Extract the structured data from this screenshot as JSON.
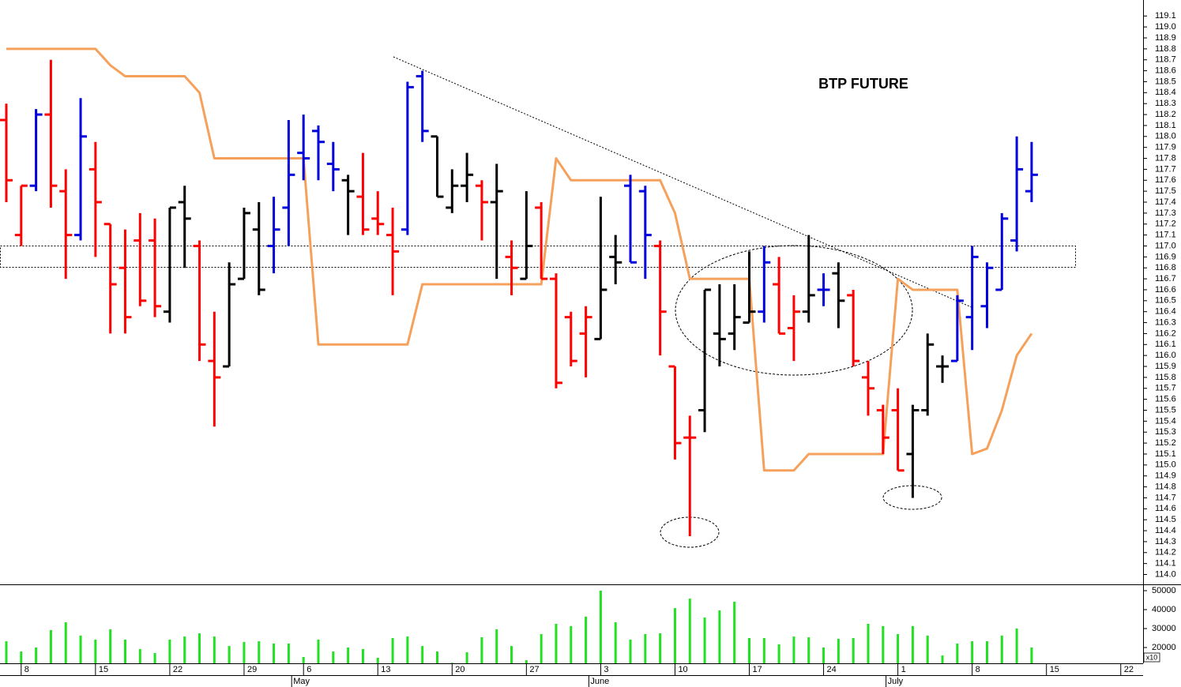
{
  "chart_data": {
    "type": "ohlc",
    "title": "BTP FUTURE",
    "categories": [
      null,
      "8",
      null,
      null,
      null,
      null,
      "15",
      null,
      null,
      null,
      null,
      "22",
      null,
      null,
      null,
      null,
      "29",
      null,
      null,
      null,
      "6",
      null,
      null,
      null,
      null,
      "13",
      null,
      null,
      null,
      null,
      "20",
      null,
      null,
      null,
      null,
      "27",
      null,
      null,
      null,
      null,
      "3",
      null,
      null,
      null,
      null,
      "10",
      null,
      null,
      null,
      null,
      "17",
      null,
      null,
      null,
      null,
      "24",
      null,
      null,
      null,
      null,
      "1",
      null,
      null,
      null,
      null,
      "8",
      null,
      null,
      null,
      null,
      "15",
      null,
      null,
      null,
      null,
      "22",
      null
    ],
    "months": [
      null,
      null,
      null,
      null,
      null,
      null,
      null,
      null,
      null,
      null,
      null,
      null,
      null,
      null,
      null,
      null,
      null,
      null,
      null,
      null,
      "May",
      null,
      null,
      null,
      null,
      null,
      null,
      null,
      null,
      null,
      null,
      null,
      null,
      null,
      null,
      null,
      null,
      null,
      null,
      null,
      "June",
      null,
      null,
      null,
      null,
      null,
      null,
      null,
      null,
      null,
      null,
      null,
      null,
      null,
      null,
      null,
      null,
      null,
      null,
      null,
      "July",
      null,
      null,
      null,
      null,
      null,
      null,
      null,
      null,
      null,
      null,
      null,
      null,
      null,
      null,
      null,
      null
    ],
    "open": [
      118.15,
      117.1,
      117.55,
      118.2,
      117.5,
      117.1,
      117.7,
      117.2,
      116.8,
      117.05,
      117.05,
      116.4,
      117.4,
      117.0,
      115.95,
      115.9,
      116.7,
      117.15,
      117.0,
      117.35,
      117.85,
      118.05,
      117.75,
      117.6,
      117.45,
      117.25,
      117.1,
      117.15,
      118.55,
      118.0,
      117.35,
      117.55,
      117.55,
      117.4,
      116.9,
      116.7,
      117.35,
      116.7,
      116.35,
      116.2,
      116.15,
      116.9,
      117.55,
      117.5,
      117.0,
      115.9,
      115.25,
      115.5,
      116.2,
      116.2,
      116.3,
      116.4,
      116.65,
      116.25,
      116.4,
      116.6,
      116.75,
      116.55,
      115.8,
      115.5,
      115.5,
      115.1,
      115.5,
      115.9,
      115.95,
      116.35,
      116.45,
      116.6,
      117.05,
      117.5,
      null,
      null,
      null,
      null,
      null,
      null,
      null
    ],
    "high": [
      118.3,
      117.55,
      118.25,
      118.7,
      117.7,
      118.35,
      117.95,
      117.2,
      117.15,
      117.3,
      117.25,
      117.35,
      117.55,
      117.05,
      116.4,
      116.85,
      117.35,
      117.4,
      117.45,
      118.15,
      118.2,
      118.1,
      117.95,
      117.65,
      117.85,
      117.5,
      117.35,
      118.5,
      118.6,
      118.0,
      117.7,
      117.85,
      117.6,
      117.75,
      117.05,
      117.5,
      117.4,
      116.75,
      116.4,
      116.45,
      117.45,
      117.1,
      117.65,
      117.55,
      117.05,
      115.9,
      115.45,
      116.6,
      116.65,
      116.65,
      116.95,
      117.0,
      116.9,
      116.55,
      117.1,
      116.75,
      116.85,
      116.6,
      115.95,
      115.55,
      115.7,
      115.55,
      116.2,
      116.0,
      116.55,
      117.0,
      116.85,
      117.3,
      118.0,
      117.95,
      null,
      null,
      null,
      null,
      null,
      null,
      null
    ],
    "low": [
      117.4,
      117.0,
      117.5,
      117.35,
      116.7,
      117.05,
      116.9,
      116.2,
      116.2,
      116.45,
      116.35,
      116.3,
      116.8,
      115.95,
      115.35,
      115.9,
      116.7,
      116.55,
      116.75,
      117.0,
      117.6,
      117.6,
      117.5,
      117.1,
      117.1,
      117.1,
      116.55,
      117.1,
      117.95,
      117.45,
      117.3,
      117.4,
      117.05,
      116.7,
      116.55,
      116.7,
      116.7,
      115.7,
      115.9,
      115.8,
      116.15,
      116.65,
      116.85,
      116.7,
      116.0,
      115.05,
      114.35,
      115.3,
      115.9,
      116.05,
      116.3,
      116.3,
      116.2,
      115.95,
      116.3,
      116.45,
      116.25,
      115.9,
      115.45,
      115.1,
      114.95,
      114.7,
      115.45,
      115.75,
      115.95,
      116.05,
      116.25,
      116.6,
      116.95,
      117.4,
      null,
      null,
      null,
      null,
      null,
      null,
      null
    ],
    "close": [
      117.6,
      117.55,
      118.2,
      117.55,
      117.1,
      118.0,
      117.4,
      116.65,
      116.35,
      116.5,
      116.45,
      117.35,
      117.25,
      116.1,
      115.8,
      116.65,
      117.3,
      116.6,
      117.15,
      117.65,
      117.8,
      117.95,
      117.7,
      117.5,
      117.15,
      117.2,
      116.95,
      118.45,
      118.05,
      117.45,
      117.55,
      117.65,
      117.4,
      117.5,
      116.8,
      117.0,
      116.7,
      115.75,
      115.95,
      116.35,
      116.6,
      116.85,
      116.85,
      117.1,
      116.4,
      115.2,
      115.25,
      116.6,
      116.15,
      116.35,
      116.4,
      116.85,
      116.2,
      116.4,
      116.55,
      116.6,
      116.5,
      115.95,
      115.7,
      115.25,
      114.95,
      115.5,
      116.1,
      115.9,
      116.5,
      116.9,
      116.8,
      117.25,
      117.7,
      117.65,
      null,
      null,
      null,
      null,
      null,
      null,
      null
    ],
    "bar_colors": [
      "#ff0000",
      "#ff0000",
      "#0000dd",
      "#ff0000",
      "#ff0000",
      "#0000dd",
      "#ff0000",
      "#ff0000",
      "#ff0000",
      "#ff0000",
      "#ff0000",
      "#000000",
      "#000000",
      "#ff0000",
      "#ff0000",
      "#000000",
      "#000000",
      "#000000",
      "#0000dd",
      "#0000dd",
      "#0000dd",
      "#0000dd",
      "#0000dd",
      "#000000",
      "#ff0000",
      "#ff0000",
      "#ff0000",
      "#0000dd",
      "#0000dd",
      "#000000",
      "#000000",
      "#000000",
      "#ff0000",
      "#000000",
      "#ff0000",
      "#000000",
      "#ff0000",
      "#ff0000",
      "#ff0000",
      "#ff0000",
      "#000000",
      "#000000",
      "#0000dd",
      "#0000dd",
      "#ff0000",
      "#ff0000",
      "#ff0000",
      "#000000",
      "#000000",
      "#000000",
      "#000000",
      "#0000dd",
      "#ff0000",
      "#ff0000",
      "#000000",
      "#0000dd",
      "#000000",
      "#ff0000",
      "#ff0000",
      "#ff0000",
      "#ff0000",
      "#000000",
      "#000000",
      "#000000",
      "#0000dd",
      "#0000dd",
      "#0000dd",
      "#0000dd",
      "#0000dd",
      "#0000dd",
      null,
      null,
      null,
      null,
      null,
      null,
      null
    ],
    "line": {
      "color": "#f5a15b",
      "values": [
        118.8,
        118.8,
        118.8,
        118.8,
        118.8,
        118.8,
        118.8,
        118.65,
        118.55,
        118.55,
        118.55,
        118.55,
        118.55,
        118.4,
        117.8,
        117.8,
        117.8,
        117.8,
        117.8,
        117.8,
        117.8,
        116.1,
        116.1,
        116.1,
        116.1,
        116.1,
        116.1,
        116.1,
        116.65,
        116.65,
        116.65,
        116.65,
        116.65,
        116.65,
        116.65,
        116.65,
        116.65,
        117.8,
        117.6,
        117.6,
        117.6,
        117.6,
        117.6,
        117.6,
        117.6,
        117.3,
        116.7,
        116.7,
        116.7,
        116.7,
        116.7,
        114.95,
        114.95,
        114.95,
        115.1,
        115.1,
        115.1,
        115.1,
        115.1,
        115.1,
        116.7,
        116.6,
        116.6,
        116.6,
        116.6,
        115.1,
        115.15,
        115.5,
        116.0,
        116.2,
        null,
        null,
        null,
        null,
        null,
        null,
        null
      ]
    },
    "ylim": [
      113.91,
      119.21
    ],
    "yticks": [
      {
        "value": 114,
        "label": "114.0"
      },
      114.1,
      114.2,
      114.3,
      114.4,
      114.5,
      114.6,
      114.7,
      114.8,
      114.9,
      {
        "value": 115,
        "label": "115.0"
      },
      115.1,
      115.2,
      115.3,
      115.4,
      115.5,
      115.6,
      115.7,
      115.8,
      115.9,
      {
        "value": 116,
        "label": "116.0"
      },
      116.1,
      116.2,
      116.3,
      116.4,
      116.5,
      116.6,
      116.7,
      116.8,
      116.9,
      {
        "value": 117,
        "label": "117.0"
      },
      117.1,
      117.2,
      117.3,
      117.4,
      117.5,
      117.6,
      117.7,
      117.8,
      117.9,
      {
        "value": 118,
        "label": "118.0"
      },
      118.1,
      118.2,
      118.3,
      118.4,
      118.5,
      118.6,
      118.7,
      118.8,
      118.9,
      {
        "value": 119,
        "label": "119.0"
      },
      119.1
    ],
    "volume": {
      "color": "#22e022",
      "unit_label": "x10",
      "values": [
        23300,
        17900,
        20000,
        29200,
        33300,
        26300,
        24200,
        29600,
        24200,
        19200,
        17100,
        24200,
        25800,
        27500,
        25800,
        20800,
        22900,
        23300,
        22100,
        22100,
        15000,
        24200,
        17900,
        20000,
        19200,
        14600,
        25000,
        25800,
        20800,
        17900,
        12000,
        17500,
        25400,
        29600,
        20800,
        13300,
        27100,
        32500,
        31300,
        36300,
        50000,
        33300,
        24200,
        27100,
        27500,
        40800,
        45800,
        35800,
        39600,
        44200,
        25000,
        25000,
        21700,
        25800,
        25400,
        20000,
        24600,
        25000,
        32500,
        31300,
        27100,
        31300,
        26300,
        15800,
        22100,
        23300,
        23300,
        26300,
        30000,
        20000,
        null,
        null,
        null,
        null,
        null,
        null,
        null
      ],
      "ylim": [
        11667,
        53333
      ],
      "yticks": [
        20000,
        30000,
        40000,
        50000
      ]
    }
  }
}
